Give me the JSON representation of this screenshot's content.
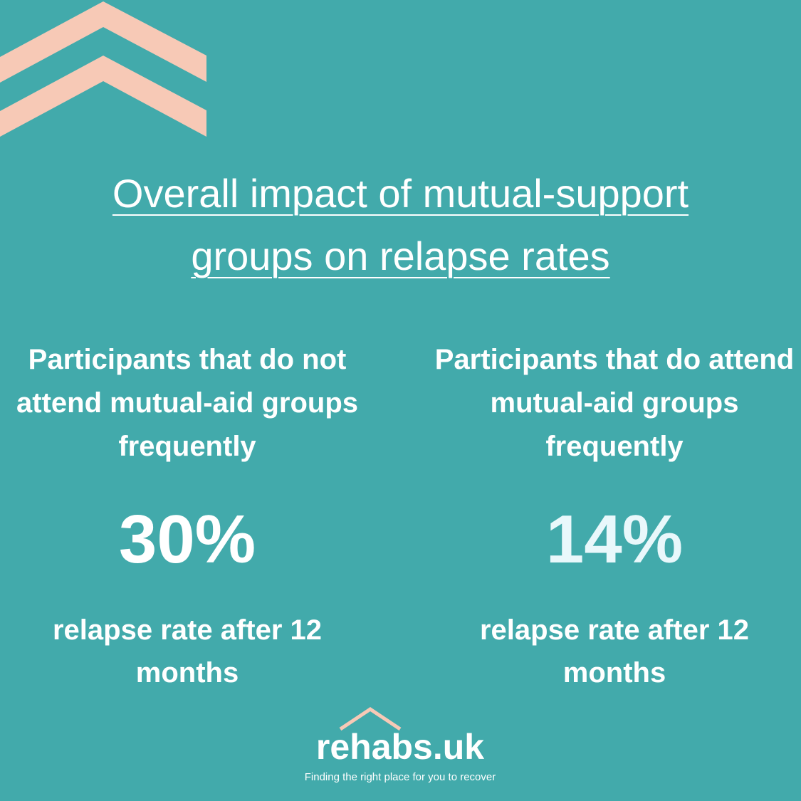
{
  "title": "Overall impact of mutual-support groups on relapse rates",
  "columns": [
    {
      "heading": "Participants that do not attend mutual-aid groups frequently",
      "stat": "30%",
      "caption": "relapse rate after 12 months"
    },
    {
      "heading": "Participants that do attend mutual-aid groups frequently",
      "stat": "14%",
      "caption": "relapse rate after 12 months"
    }
  ],
  "logo": {
    "name": "rehabs.uk",
    "tagline": "Finding the right place for you to recover"
  }
}
